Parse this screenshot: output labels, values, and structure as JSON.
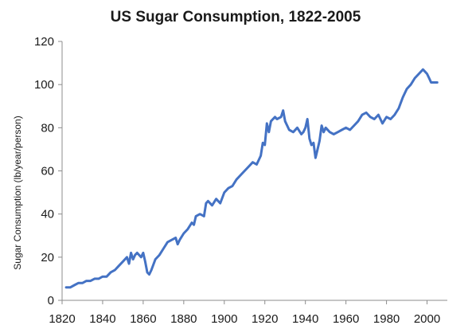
{
  "chart_data": {
    "type": "line",
    "title": "US Sugar Consumption, 1822-2005",
    "xlabel": "",
    "ylabel": "Sugar Consumption (lb/year/person)",
    "xlim": [
      1820,
      2010
    ],
    "ylim": [
      0,
      120
    ],
    "x_ticks": [
      "1820",
      "1840",
      "1860",
      "1880",
      "1900",
      "1920",
      "1940",
      "1960",
      "1980",
      "2000"
    ],
    "y_ticks": [
      "0",
      "20",
      "40",
      "60",
      "80",
      "100",
      "120"
    ],
    "grid": false,
    "legend": "none",
    "line_color": "#4472c4",
    "series": [
      {
        "x": [
          1822,
          1824,
          1826,
          1828,
          1830,
          1832,
          1834,
          1836,
          1838,
          1840,
          1842,
          1844,
          1846,
          1848,
          1850,
          1852,
          1853,
          1854,
          1855,
          1856,
          1857,
          1858,
          1859,
          1860,
          1861,
          1862,
          1863,
          1864,
          1866,
          1868,
          1870,
          1872,
          1874,
          1876,
          1877,
          1878,
          1880,
          1882,
          1884,
          1885,
          1886,
          1888,
          1890,
          1891,
          1892,
          1894,
          1896,
          1898,
          1900,
          1902,
          1904,
          1906,
          1908,
          1910,
          1912,
          1914,
          1916,
          1918,
          1919,
          1920,
          1921,
          1922,
          1923,
          1924,
          1925,
          1926,
          1928,
          1929,
          1930,
          1932,
          1934,
          1936,
          1938,
          1939,
          1940,
          1941,
          1942,
          1943,
          1944,
          1945,
          1946,
          1947,
          1948,
          1949,
          1950,
          1952,
          1954,
          1956,
          1958,
          1960,
          1962,
          1964,
          1966,
          1968,
          1970,
          1972,
          1974,
          1976,
          1978,
          1980,
          1982,
          1984,
          1986,
          1988,
          1990,
          1992,
          1994,
          1996,
          1998,
          1999,
          2000,
          2001,
          2002,
          2003,
          2004,
          2005
        ],
        "y": [
          6,
          6,
          7,
          8,
          8,
          9,
          9,
          10,
          10,
          11,
          11,
          13,
          14,
          16,
          18,
          20,
          17,
          22,
          19,
          21,
          22,
          21,
          20,
          22,
          18,
          13,
          12,
          14,
          19,
          21,
          24,
          27,
          28,
          29,
          26,
          28,
          31,
          33,
          36,
          35,
          39,
          40,
          39,
          45,
          46,
          44,
          47,
          45,
          50,
          52,
          53,
          56,
          58,
          60,
          62,
          64,
          63,
          67,
          73,
          72,
          82,
          78,
          83,
          84,
          85,
          84,
          85,
          88,
          83,
          79,
          78,
          80,
          77,
          78,
          80,
          84,
          75,
          72,
          73,
          66,
          70,
          74,
          81,
          78,
          80,
          78,
          77,
          78,
          79,
          80,
          79,
          81,
          83,
          86,
          87,
          85,
          84,
          86,
          82,
          85,
          84,
          86,
          89,
          94,
          98,
          100,
          103,
          105,
          107,
          106,
          105,
          103,
          101,
          101,
          101,
          101
        ]
      }
    ]
  }
}
